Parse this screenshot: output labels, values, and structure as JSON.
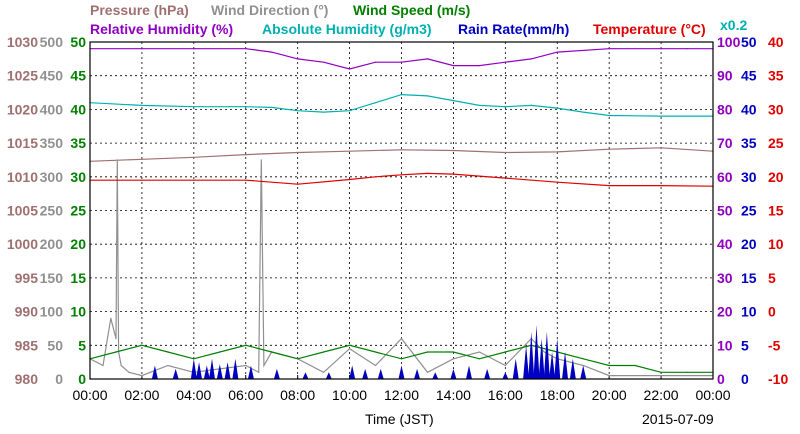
{
  "chart_data": {
    "type": "line",
    "legend": {
      "row1": [
        {
          "name": "Pressure (hPa)",
          "color": "#a07070"
        },
        {
          "name": "Wind Direction (°)",
          "color": "#909090"
        },
        {
          "name": "Wind Speed (m/s)",
          "color": "#008000"
        }
      ],
      "row2": [
        {
          "name": "Relative Humidity (%)",
          "color": "#9000c0"
        },
        {
          "name": "Absolute Humidity (g/m3)",
          "color": "#00b0b0"
        },
        {
          "name": "Rain Rate(mm/h)",
          "color": "#0000c0"
        },
        {
          "name": "Temperature (°C)",
          "color": "#e00000"
        }
      ],
      "scale_note": "x0.2"
    },
    "xlabel": "Time (JST)",
    "date": "2015-07-09",
    "x_ticks": [
      "00:00",
      "02:00",
      "04:00",
      "06:00",
      "08:00",
      "10:00",
      "12:00",
      "14:00",
      "16:00",
      "18:00",
      "20:00",
      "22:00",
      "00:00"
    ],
    "axes": {
      "pressure": {
        "ticks": [
          "980",
          "985",
          "990",
          "995",
          "1000",
          "1005",
          "1010",
          "1015",
          "1020",
          "1025",
          "1030"
        ],
        "range": [
          980,
          1030
        ],
        "color": "#a07070"
      },
      "wind_direction": {
        "ticks": [
          "0",
          "50",
          "100",
          "150",
          "200",
          "250",
          "300",
          "350",
          "400",
          "450",
          "500"
        ],
        "range": [
          0,
          500
        ],
        "color": "#909090"
      },
      "wind_speed": {
        "ticks": [
          "0",
          "5",
          "10",
          "15",
          "20",
          "25",
          "30",
          "35",
          "40",
          "45",
          "50"
        ],
        "range": [
          0,
          50
        ],
        "color": "#008000"
      },
      "humidity": {
        "ticks": [
          "0",
          "10",
          "20",
          "30",
          "40",
          "50",
          "60",
          "70",
          "80",
          "90",
          "100"
        ],
        "range": [
          0,
          100
        ],
        "color": "#9000c0"
      },
      "rain_rate": {
        "ticks": [
          "0",
          "5",
          "10",
          "15",
          "20",
          "25",
          "30",
          "35",
          "40",
          "45",
          "50"
        ],
        "range": [
          0,
          50
        ],
        "color": "#0000c0"
      },
      "temperature": {
        "ticks": [
          "-10",
          "-5",
          "0",
          "5",
          "10",
          "15",
          "20",
          "25",
          "30",
          "35",
          "40"
        ],
        "range": [
          -10,
          40
        ],
        "color": "#e00000"
      }
    },
    "series": [
      {
        "name": "Pressure (hPa)",
        "color": "#a07070",
        "axis": "pressure",
        "x": [
          0,
          2,
          4,
          6,
          8,
          10,
          12,
          14,
          16,
          18,
          20,
          22,
          24
        ],
        "y": [
          1012.3,
          1012.6,
          1012.9,
          1013.3,
          1013.6,
          1013.8,
          1014.0,
          1013.9,
          1013.6,
          1013.7,
          1014.1,
          1014.3,
          1013.8
        ]
      },
      {
        "name": "Wind Direction (°)",
        "color": "#909090",
        "axis": "wind_direction",
        "x": [
          0,
          0.5,
          0.8,
          1.0,
          1.05,
          1.1,
          1.2,
          1.5,
          2,
          3,
          4,
          5,
          6,
          6.5,
          6.6,
          6.7,
          7,
          8,
          9,
          10,
          11,
          12,
          13,
          14,
          15,
          16,
          16.5,
          17,
          17.5,
          18,
          19,
          20,
          22,
          24
        ],
        "y": [
          30,
          20,
          90,
          60,
          325,
          40,
          20,
          10,
          5,
          20,
          10,
          15,
          20,
          10,
          325,
          20,
          40,
          30,
          10,
          45,
          20,
          60,
          10,
          30,
          40,
          20,
          40,
          60,
          40,
          30,
          20,
          5,
          5,
          5
        ]
      },
      {
        "name": "Wind Speed (m/s)",
        "color": "#008000",
        "axis": "wind_speed",
        "x": [
          0,
          1,
          2,
          3,
          4,
          5,
          6,
          7,
          8,
          9,
          10,
          11,
          12,
          13,
          14,
          15,
          16,
          17,
          18,
          19,
          20,
          21,
          22,
          23,
          24
        ],
        "y": [
          3,
          4,
          5,
          4,
          3,
          4,
          5,
          4,
          3,
          4,
          5,
          4,
          3,
          4,
          4,
          3,
          4,
          5,
          4,
          3,
          2,
          2,
          1,
          1,
          1
        ]
      },
      {
        "name": "Relative Humidity (%)",
        "color": "#9000c0",
        "axis": "humidity",
        "x": [
          0,
          2,
          4,
          6,
          7,
          8,
          9,
          10,
          11,
          12,
          13,
          14,
          15,
          16,
          17,
          18,
          20,
          22,
          23,
          24
        ],
        "y": [
          98,
          98,
          98,
          98,
          97,
          95,
          94,
          92,
          94,
          94,
          95,
          93,
          93,
          94,
          95,
          97,
          98,
          98,
          98,
          98
        ]
      },
      {
        "name": "Absolute Humidity (g/m3)",
        "color": "#00b0b0",
        "axis": "wind_speed",
        "x": [
          0,
          2,
          4,
          6,
          7,
          8,
          9,
          10,
          11,
          12,
          13,
          14,
          15,
          16,
          17,
          18,
          19,
          20,
          22,
          24
        ],
        "y": [
          41,
          40.6,
          40.4,
          40.4,
          40.3,
          39.8,
          39.6,
          39.8,
          41.0,
          42.2,
          42.0,
          41.3,
          40.6,
          40.4,
          40.6,
          40.2,
          39.6,
          39.1,
          39.0,
          39.0
        ]
      },
      {
        "name": "Temperature (°C)",
        "color": "#e00000",
        "axis": "temperature",
        "x": [
          0,
          2,
          4,
          6,
          8,
          10,
          11,
          12,
          13,
          14,
          16,
          18,
          20,
          22,
          24
        ],
        "y": [
          19.5,
          19.5,
          19.5,
          19.5,
          18.9,
          19.6,
          20.0,
          20.3,
          20.5,
          20.4,
          19.8,
          19.2,
          18.7,
          18.7,
          18.6
        ]
      },
      {
        "name": "Rain Rate(mm/h)",
        "color": "#0000c0",
        "axis": "rain_rate",
        "type": "bar",
        "x": [
          2.5,
          3.3,
          4.0,
          4.2,
          4.5,
          4.7,
          5.0,
          5.3,
          5.6,
          6.2,
          7.2,
          8.3,
          9.2,
          10.1,
          10.6,
          11.2,
          12.0,
          12.6,
          13.3,
          14.0,
          14.6,
          15.3,
          16.0,
          16.4,
          16.8,
          17.0,
          17.2,
          17.4,
          17.6,
          17.8,
          18.0,
          18.3,
          18.6,
          19.0
        ],
        "y": [
          2,
          1.5,
          3,
          2.5,
          2,
          3,
          2.2,
          2.5,
          3,
          2,
          1.5,
          1,
          1,
          2,
          1.5,
          1.5,
          2,
          1.5,
          1,
          1.5,
          2,
          1.5,
          1,
          3,
          5,
          7,
          8,
          6,
          7,
          4,
          6,
          4,
          3,
          2
        ]
      }
    ]
  }
}
